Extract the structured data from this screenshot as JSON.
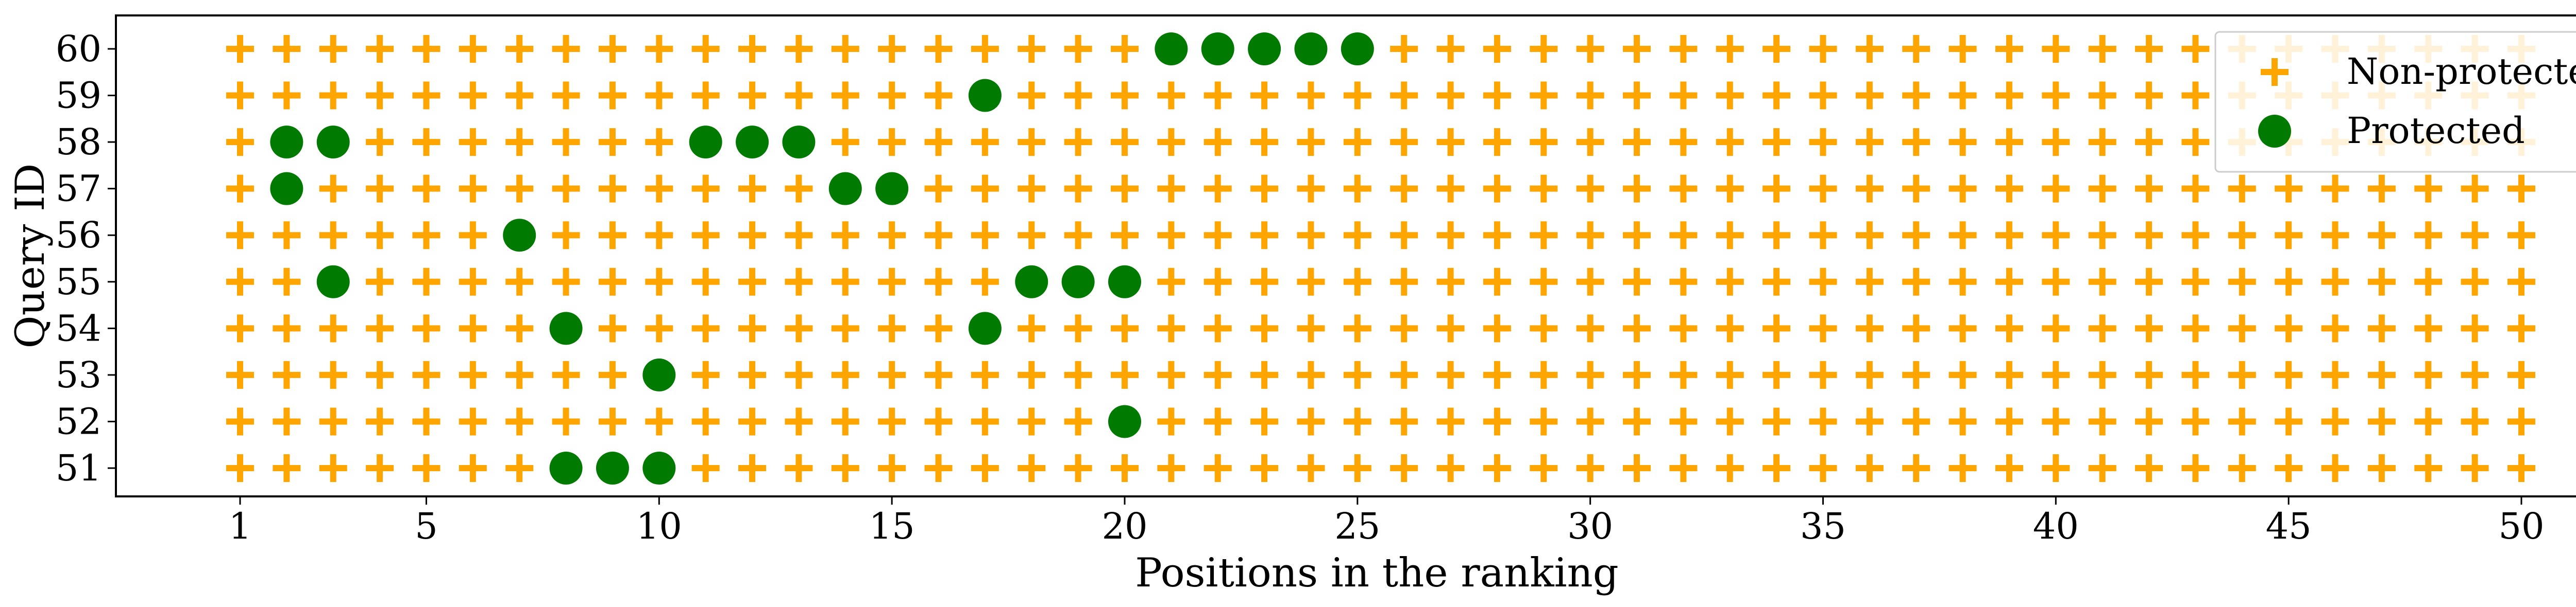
{
  "chart_data": {
    "type": "scatter",
    "xlabel": "Positions in the ranking",
    "ylabel": "Query ID",
    "xlim": [
      1,
      50
    ],
    "ylim": [
      51,
      60
    ],
    "x_ticks": [
      1,
      5,
      10,
      15,
      20,
      25,
      30,
      35,
      40,
      45,
      50
    ],
    "y_ticks": [
      51,
      52,
      53,
      54,
      55,
      56,
      57,
      58,
      59,
      60
    ],
    "grid": false,
    "legend_position": "top-right",
    "series": [
      {
        "name": "Non-protected",
        "marker": "plus",
        "color": "#FFA500",
        "description_rule": "all positions 1-50 for each query except those listed as Protected"
      },
      {
        "name": "Protected",
        "marker": "circle",
        "color": "#007A00",
        "points": {
          "60": [
            21,
            22,
            23,
            24,
            25
          ],
          "59": [
            17
          ],
          "58": [
            2,
            3,
            11,
            12,
            13
          ],
          "57": [
            2,
            14,
            15
          ],
          "56": [
            7
          ],
          "55": [
            3,
            18,
            19,
            20
          ],
          "54": [
            8,
            17
          ],
          "53": [
            10
          ],
          "52": [
            20
          ],
          "51": [
            8,
            9,
            10
          ]
        }
      }
    ]
  }
}
